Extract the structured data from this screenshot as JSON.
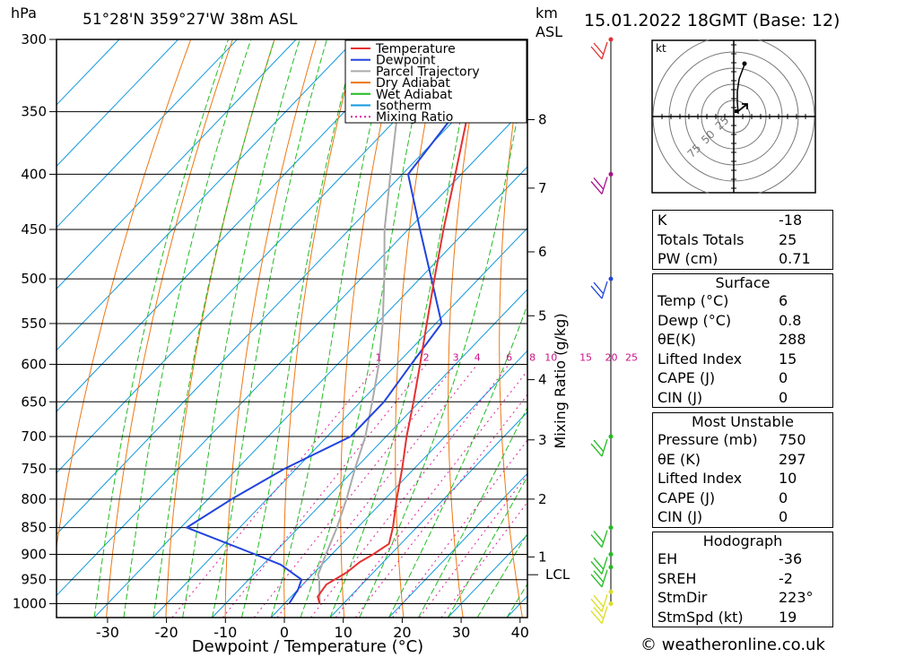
{
  "header": {
    "pressure_unit": "hPa",
    "location": "51°28'N 359°27'W 38m ASL",
    "km_label": "km",
    "asl_label": "ASL",
    "datetime": "15.01.2022 18GMT (Base: 12)"
  },
  "chart_data": {
    "type": "skew-t",
    "xlabel": "Dewpoint / Temperature (°C)",
    "ylabel_left": "hPa",
    "ylabel_right": "Mixing Ratio (g/kg)",
    "x_ticks": [
      -30,
      -20,
      -10,
      0,
      10,
      20,
      30,
      40
    ],
    "pressure_levels": [
      300,
      350,
      400,
      450,
      500,
      550,
      600,
      650,
      700,
      750,
      800,
      850,
      900,
      950,
      1000
    ],
    "height_km": [
      {
        "km": "8",
        "p": 356
      },
      {
        "km": "7",
        "p": 412
      },
      {
        "km": "6",
        "p": 472
      },
      {
        "km": "5",
        "p": 541
      },
      {
        "km": "4",
        "p": 620
      },
      {
        "km": "3",
        "p": 705
      },
      {
        "km": "2",
        "p": 800
      },
      {
        "km": "1",
        "p": 905
      }
    ],
    "lcl": {
      "label": "LCL",
      "p": 940
    },
    "mixing_ratio_labels": [
      "1",
      "2",
      "3",
      "4",
      "6",
      "8",
      "10",
      "15",
      "20",
      "25"
    ],
    "mixing_ratios": [
      1,
      2,
      3,
      4,
      6,
      8,
      10,
      15,
      20,
      25
    ],
    "legend": [
      {
        "name": "Temperature",
        "color": "#e53030",
        "style": "solid"
      },
      {
        "name": "Dewpoint",
        "color": "#2244dd",
        "style": "solid"
      },
      {
        "name": "Parcel Trajectory",
        "color": "#aaaaaa",
        "style": "solid"
      },
      {
        "name": "Dry Adiabat",
        "color": "#ee7711",
        "style": "solid"
      },
      {
        "name": "Wet Adiabat",
        "color": "#22bb22",
        "style": "solid"
      },
      {
        "name": "Isotherm",
        "color": "#1199dd",
        "style": "solid"
      },
      {
        "name": "Mixing Ratio",
        "color": "#dd2299",
        "style": "dotted"
      }
    ],
    "temperature": [
      {
        "p": 1000,
        "t": 6
      },
      {
        "p": 985,
        "t": 4.5
      },
      {
        "p": 960,
        "t": 4
      },
      {
        "p": 935,
        "t": 5.5
      },
      {
        "p": 915,
        "t": 6
      },
      {
        "p": 900,
        "t": 7
      },
      {
        "p": 880,
        "t": 8
      },
      {
        "p": 850,
        "t": 6
      },
      {
        "p": 800,
        "t": 2
      },
      {
        "p": 750,
        "t": -2
      },
      {
        "p": 700,
        "t": -6.5
      },
      {
        "p": 650,
        "t": -11
      },
      {
        "p": 600,
        "t": -16
      },
      {
        "p": 550,
        "t": -21.5
      },
      {
        "p": 500,
        "t": -27.5
      },
      {
        "p": 450,
        "t": -34
      },
      {
        "p": 400,
        "t": -41
      },
      {
        "p": 350,
        "t": -49
      },
      {
        "p": 300,
        "t": -56.5
      }
    ],
    "dewpoint": [
      {
        "p": 1000,
        "t": 0.8
      },
      {
        "p": 970,
        "t": 0
      },
      {
        "p": 950,
        "t": -1
      },
      {
        "p": 920,
        "t": -7
      },
      {
        "p": 900,
        "t": -13
      },
      {
        "p": 850,
        "t": -29
      },
      {
        "p": 800,
        "t": -26
      },
      {
        "p": 750,
        "t": -22
      },
      {
        "p": 700,
        "t": -16
      },
      {
        "p": 650,
        "t": -16
      },
      {
        "p": 600,
        "t": -17.5
      },
      {
        "p": 550,
        "t": -19
      },
      {
        "p": 500,
        "t": -28
      },
      {
        "p": 450,
        "t": -38
      },
      {
        "p": 400,
        "t": -49
      },
      {
        "p": 350,
        "t": -51
      },
      {
        "p": 300,
        "t": -56.5
      }
    ],
    "parcel": [
      {
        "p": 1000,
        "t": 6
      },
      {
        "p": 950,
        "t": 2
      },
      {
        "p": 940,
        "t": 1
      },
      {
        "p": 900,
        "t": -1
      },
      {
        "p": 850,
        "t": -3.5
      },
      {
        "p": 800,
        "t": -6.5
      },
      {
        "p": 750,
        "t": -10
      },
      {
        "p": 700,
        "t": -13.5
      },
      {
        "p": 650,
        "t": -18
      },
      {
        "p": 600,
        "t": -23
      },
      {
        "p": 550,
        "t": -29
      },
      {
        "p": 500,
        "t": -36
      },
      {
        "p": 450,
        "t": -44
      },
      {
        "p": 400,
        "t": -52
      },
      {
        "p": 350,
        "t": -61
      },
      {
        "p": 300,
        "t": -70
      }
    ],
    "wind_barbs": [
      {
        "p": 300,
        "color": "#e53030"
      },
      {
        "p": 400,
        "color": "#aa1188"
      },
      {
        "p": 500,
        "color": "#2244dd"
      },
      {
        "p": 700,
        "color": "#22bb22"
      },
      {
        "p": 850,
        "color": "#22bb22"
      },
      {
        "p": 900,
        "color": "#22bb22"
      },
      {
        "p": 925,
        "color": "#22bb22"
      },
      {
        "p": 975,
        "color": "#dddd22"
      },
      {
        "p": 1000,
        "color": "#dddd22"
      }
    ]
  },
  "hodograph": {
    "unit_label": "kt",
    "ring_labels": [
      "25",
      "50",
      "75"
    ]
  },
  "indices": {
    "rows": [
      {
        "label": "K",
        "value": "-18"
      },
      {
        "label": "Totals Totals",
        "value": "25"
      },
      {
        "label": "PW (cm)",
        "value": "0.71"
      }
    ]
  },
  "surface": {
    "title": "Surface",
    "rows": [
      {
        "label": "Temp (°C)",
        "value": "6"
      },
      {
        "label": "Dewp (°C)",
        "value": "0.8"
      },
      {
        "label": "θE(K)",
        "value": "288"
      },
      {
        "label": "Lifted Index",
        "value": "15"
      },
      {
        "label": "CAPE (J)",
        "value": "0"
      },
      {
        "label": "CIN (J)",
        "value": "0"
      }
    ]
  },
  "most_unstable": {
    "title": "Most Unstable",
    "rows": [
      {
        "label": "Pressure (mb)",
        "value": "750"
      },
      {
        "label": "θE (K)",
        "value": "297"
      },
      {
        "label": "Lifted Index",
        "value": "10"
      },
      {
        "label": "CAPE (J)",
        "value": "0"
      },
      {
        "label": "CIN (J)",
        "value": "0"
      }
    ]
  },
  "hodograph_stats": {
    "title": "Hodograph",
    "rows": [
      {
        "label": "EH",
        "value": "-36"
      },
      {
        "label": "SREH",
        "value": "-2"
      },
      {
        "label": "StmDir",
        "value": "223°"
      },
      {
        "label": "StmSpd (kt)",
        "value": "19"
      }
    ]
  },
  "credit": "© weatheronline.co.uk"
}
